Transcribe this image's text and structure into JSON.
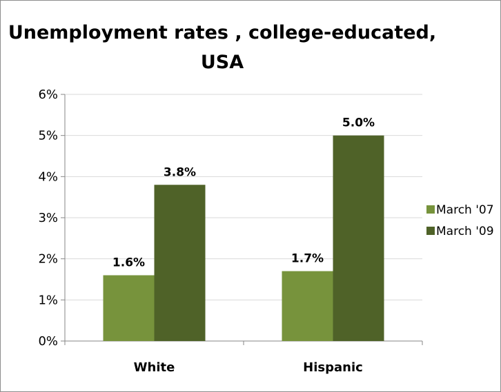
{
  "chart_data": {
    "type": "bar",
    "title_lines": [
      "Unemployment rates , college-educated,",
      "USA"
    ],
    "categories": [
      "White",
      "Hispanic"
    ],
    "series": [
      {
        "name": "March '07",
        "values": [
          1.6,
          1.7
        ],
        "labels": [
          "1.6%",
          "1.7%"
        ],
        "color": "#77933c"
      },
      {
        "name": "March '09",
        "values": [
          3.8,
          5.0
        ],
        "labels": [
          "3.8%",
          "5.0%"
        ],
        "color": "#4f6228"
      }
    ],
    "y_ticks": [
      "0%",
      "1%",
      "2%",
      "3%",
      "4%",
      "5%",
      "6%"
    ],
    "ylim": [
      0,
      6
    ],
    "grid": true,
    "legend_position": "right"
  }
}
